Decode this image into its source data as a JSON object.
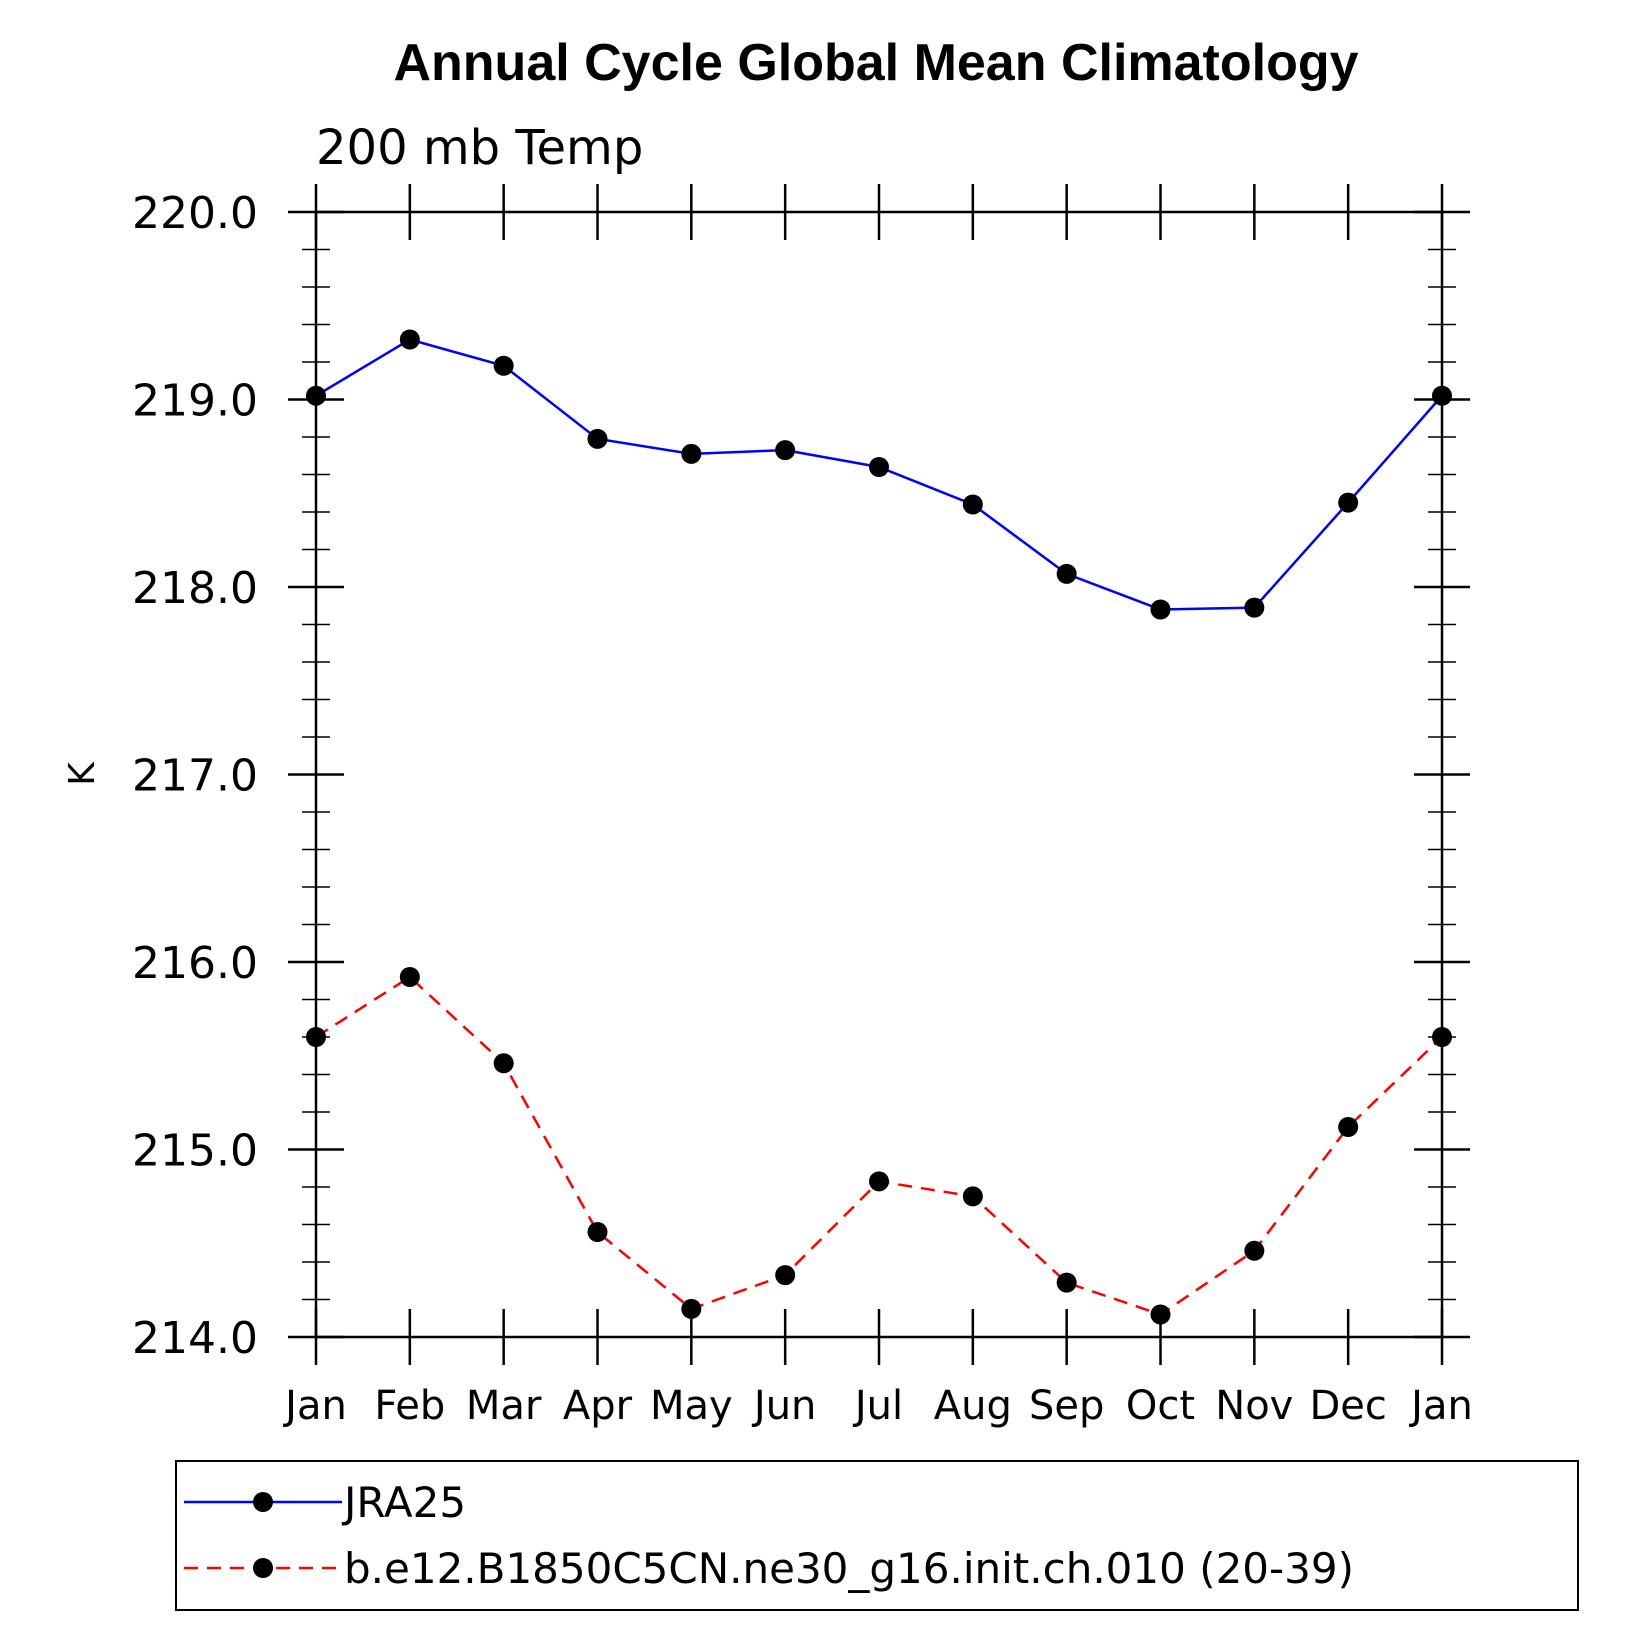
{
  "chart_data": {
    "type": "line",
    "title": "Annual Cycle Global Mean Climatology",
    "subtitle": "200 mb Temp",
    "xlabel": "",
    "ylabel": "K",
    "categories": [
      "Jan",
      "Feb",
      "Mar",
      "Apr",
      "May",
      "Jun",
      "Jul",
      "Aug",
      "Sep",
      "Oct",
      "Nov",
      "Dec",
      "Jan"
    ],
    "ylim": [
      214.0,
      220.0
    ],
    "yticks": [
      214.0,
      215.0,
      216.0,
      217.0,
      218.0,
      219.0,
      220.0
    ],
    "ytick_labels": [
      "214.0",
      "215.0",
      "216.0",
      "217.0",
      "218.0",
      "219.0",
      "220.0"
    ],
    "y_minor_step": 0.2,
    "grid": false,
    "legend_position": "bottom",
    "series": [
      {
        "name": "JRA25",
        "color": "#0000ff",
        "dash": "solid",
        "marker": "filled-circle",
        "values": [
          219.02,
          219.32,
          219.18,
          218.79,
          218.71,
          218.73,
          218.64,
          218.44,
          218.07,
          217.88,
          217.89,
          218.45,
          219.02
        ]
      },
      {
        "name": "b.e12.B1850C5CN.ne30_g16.init.ch.010 (20-39)",
        "color": "#ff0000",
        "dash": "dashed",
        "marker": "filled-circle",
        "values": [
          215.6,
          215.92,
          215.46,
          214.56,
          214.15,
          214.33,
          214.83,
          214.75,
          214.29,
          214.12,
          214.46,
          215.12,
          215.6
        ]
      }
    ]
  }
}
